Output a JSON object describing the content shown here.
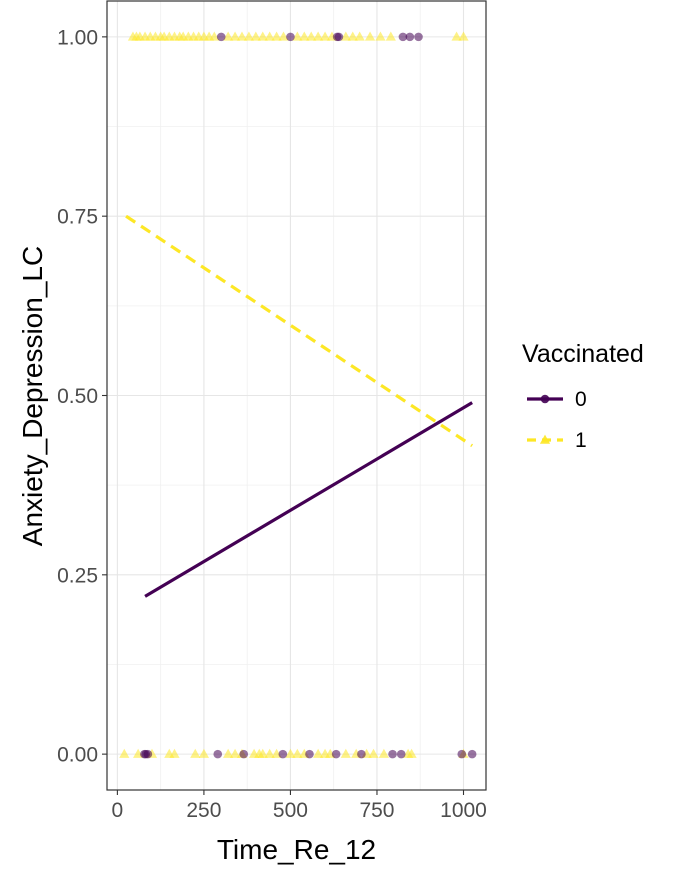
{
  "chart_data": {
    "type": "scatter",
    "title": "",
    "xlabel": "Time_Re_12",
    "ylabel": "Anxiety_Depression_LC",
    "xlim": [
      -30,
      1065
    ],
    "ylim": [
      -0.05,
      1.05
    ],
    "x_ticks": [
      0,
      250,
      500,
      750,
      1000
    ],
    "y_ticks": [
      0.0,
      0.25,
      0.5,
      0.75,
      1.0
    ],
    "x_tick_labels": [
      "0",
      "250",
      "500",
      "750",
      "1000"
    ],
    "y_tick_labels": [
      "0.00",
      "0.25",
      "0.50",
      "0.75",
      "1.00"
    ],
    "grid": true,
    "legend": {
      "title": "Vaccinated",
      "position": "right"
    },
    "series": [
      {
        "name": "0",
        "color": "#440154",
        "marker": "circle",
        "line_style": "solid",
        "fit_line": [
          [
            80,
            0.22
          ],
          [
            1025,
            0.49
          ]
        ],
        "points": [
          [
            300,
            1
          ],
          [
            500,
            1
          ],
          [
            635,
            1
          ],
          [
            640,
            1
          ],
          [
            825,
            1
          ],
          [
            845,
            1
          ],
          [
            870,
            1
          ],
          [
            78,
            0
          ],
          [
            82,
            0
          ],
          [
            88,
            0
          ],
          [
            290,
            0
          ],
          [
            365,
            0
          ],
          [
            478,
            0
          ],
          [
            555,
            0
          ],
          [
            632,
            0
          ],
          [
            705,
            0
          ],
          [
            795,
            0
          ],
          [
            820,
            0
          ],
          [
            995,
            0
          ],
          [
            1025,
            0
          ]
        ]
      },
      {
        "name": "1",
        "color": "#FDE725",
        "marker": "triangle",
        "line_style": "dashed",
        "fit_line": [
          [
            25,
            0.75
          ],
          [
            1025,
            0.43
          ]
        ],
        "points": [
          [
            45,
            1
          ],
          [
            55,
            1
          ],
          [
            65,
            1
          ],
          [
            80,
            1
          ],
          [
            95,
            1
          ],
          [
            110,
            1
          ],
          [
            125,
            1
          ],
          [
            135,
            1
          ],
          [
            150,
            1
          ],
          [
            165,
            1
          ],
          [
            180,
            1
          ],
          [
            190,
            1
          ],
          [
            205,
            1
          ],
          [
            220,
            1
          ],
          [
            235,
            1
          ],
          [
            250,
            1
          ],
          [
            265,
            1
          ],
          [
            280,
            1
          ],
          [
            320,
            1
          ],
          [
            340,
            1
          ],
          [
            360,
            1
          ],
          [
            380,
            1
          ],
          [
            400,
            1
          ],
          [
            420,
            1
          ],
          [
            440,
            1
          ],
          [
            460,
            1
          ],
          [
            480,
            1
          ],
          [
            520,
            1
          ],
          [
            540,
            1
          ],
          [
            560,
            1
          ],
          [
            580,
            1
          ],
          [
            600,
            1
          ],
          [
            620,
            1
          ],
          [
            660,
            1
          ],
          [
            680,
            1
          ],
          [
            700,
            1
          ],
          [
            730,
            1
          ],
          [
            760,
            1
          ],
          [
            790,
            1
          ],
          [
            980,
            1
          ],
          [
            1000,
            1
          ],
          [
            20,
            0
          ],
          [
            60,
            0
          ],
          [
            100,
            0
          ],
          [
            150,
            0
          ],
          [
            165,
            0
          ],
          [
            225,
            0
          ],
          [
            250,
            0
          ],
          [
            320,
            0
          ],
          [
            340,
            0
          ],
          [
            360,
            0
          ],
          [
            395,
            0
          ],
          [
            410,
            0
          ],
          [
            420,
            0
          ],
          [
            440,
            0
          ],
          [
            460,
            0
          ],
          [
            500,
            0
          ],
          [
            520,
            0
          ],
          [
            540,
            0
          ],
          [
            580,
            0
          ],
          [
            600,
            0
          ],
          [
            615,
            0
          ],
          [
            660,
            0
          ],
          [
            690,
            0
          ],
          [
            720,
            0
          ],
          [
            740,
            0
          ],
          [
            770,
            0
          ],
          [
            840,
            0
          ],
          [
            850,
            0
          ],
          [
            1000,
            0
          ]
        ]
      }
    ]
  }
}
